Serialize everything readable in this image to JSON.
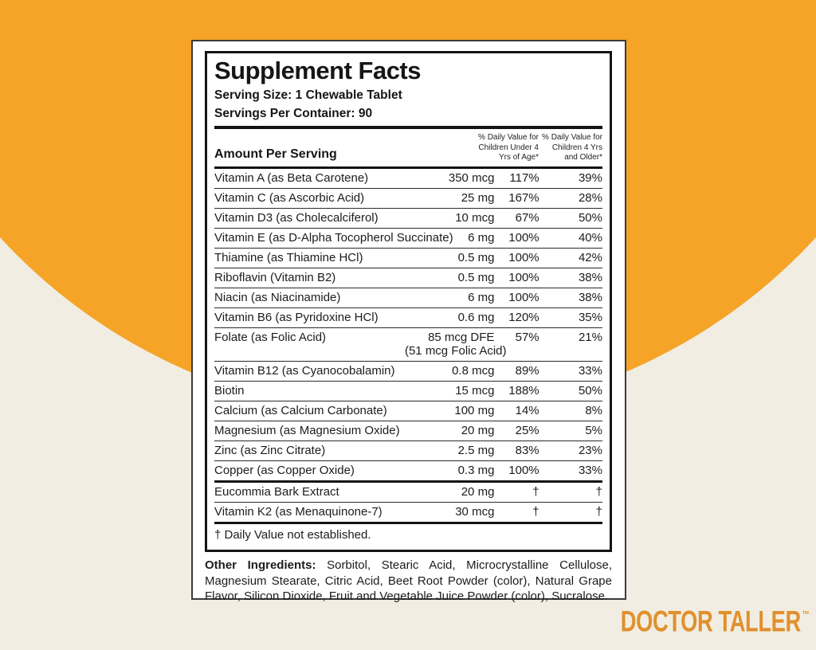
{
  "background": {
    "orange_color": "#F5A428",
    "beige_color": "#F2EDE2"
  },
  "brand": {
    "name": "DOCTOR TALLER",
    "trademark": "™",
    "color": "#E0902D"
  },
  "panel": {
    "title": "Supplement Facts",
    "serving_size": "Serving Size: 1 Chewable Tablet",
    "servings_per_container": "Servings Per Container: 90",
    "amount_per_serving_label": "Amount Per Serving",
    "dv_col1_lines": [
      "% Daily Value for",
      "Children Under 4",
      "Yrs of Age*"
    ],
    "dv_col2_lines": [
      "% Daily Value for",
      "Children 4 Yrs",
      "and Older*"
    ],
    "rows": [
      {
        "name": "Vitamin A (as Beta Carotene)",
        "amount": "350 mcg",
        "dv_under4": "117%",
        "dv_4plus": "39%"
      },
      {
        "name": "Vitamin C (as Ascorbic Acid)",
        "amount": "25 mg",
        "dv_under4": "167%",
        "dv_4plus": "28%"
      },
      {
        "name": "Vitamin D3 (as Cholecalciferol)",
        "amount": "10 mcg",
        "dv_under4": "67%",
        "dv_4plus": "50%"
      },
      {
        "name": "Vitamin E (as D-Alpha Tocopherol Succinate)",
        "amount": "6 mg",
        "dv_under4": "100%",
        "dv_4plus": "40%"
      },
      {
        "name": "Thiamine (as Thiamine HCl)",
        "amount": "0.5 mg",
        "dv_under4": "100%",
        "dv_4plus": "42%"
      },
      {
        "name": "Riboflavin (Vitamin B2)",
        "amount": "0.5 mg",
        "dv_under4": "100%",
        "dv_4plus": "38%"
      },
      {
        "name": "Niacin (as Niacinamide)",
        "amount": "6 mg",
        "dv_under4": "100%",
        "dv_4plus": "38%"
      },
      {
        "name": "Vitamin B6 (as Pyridoxine HCl)",
        "amount": "0.6 mg",
        "dv_under4": "120%",
        "dv_4plus": "35%"
      },
      {
        "name": "Folate (as Folic Acid)",
        "amount": "85 mcg DFE",
        "amount_note": "(51 mcg Folic Acid)",
        "dv_under4": "57%",
        "dv_4plus": "21%"
      },
      {
        "name": "Vitamin B12 (as Cyanocobalamin)",
        "amount": "0.8 mcg",
        "dv_under4": "89%",
        "dv_4plus": "33%"
      },
      {
        "name": "Biotin",
        "amount": "15 mcg",
        "dv_under4": "188%",
        "dv_4plus": "50%"
      },
      {
        "name": "Calcium (as Calcium Carbonate)",
        "amount": "100 mg",
        "dv_under4": "14%",
        "dv_4plus": "8%"
      },
      {
        "name": "Magnesium (as Magnesium Oxide)",
        "amount": "20 mg",
        "dv_under4": "25%",
        "dv_4plus": "5%"
      },
      {
        "name": "Zinc (as Zinc Citrate)",
        "amount": "2.5 mg",
        "dv_under4": "83%",
        "dv_4plus": "23%"
      },
      {
        "name": "Copper (as Copper Oxide)",
        "amount": "0.3 mg",
        "dv_under4": "100%",
        "dv_4plus": "33%"
      },
      {
        "name": "Eucommia Bark Extract",
        "amount": "20 mg",
        "dv_under4": "†",
        "dv_4plus": "†",
        "separator": "medium"
      },
      {
        "name": "Vitamin K2 (as Menaquinone-7)",
        "amount": "30 mcg",
        "dv_under4": "†",
        "dv_4plus": "†"
      }
    ],
    "footnote": "† Daily Value not established.",
    "other_ingredients": {
      "label": "Other Ingredients:",
      "text": "Sorbitol, Stearic Acid, Microcrystalline Cellulose, Magnesium Stearate, Citric Acid, Beet Root Powder (color), Natural Grape Flavor, Silicon Dioxide, Fruit and Vegetable Juice Powder (color), Sucralose."
    }
  }
}
